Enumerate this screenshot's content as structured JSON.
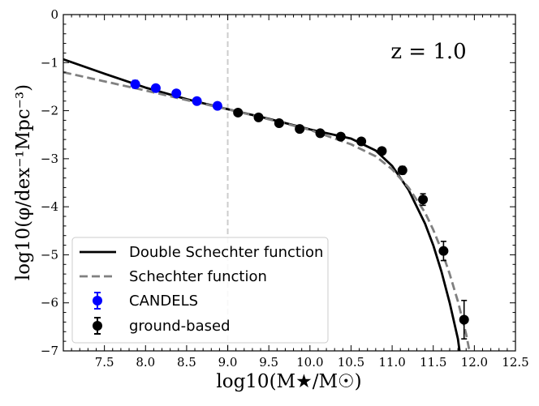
{
  "chart_data": {
    "type": "scatter",
    "title": "",
    "xlabel": "log10(M★/M☉)",
    "ylabel": "log10(φ/dex⁻¹Mpc⁻³)",
    "xlim": [
      7.0,
      12.5
    ],
    "ylim": [
      -7,
      0
    ],
    "x_ticks": [
      7.5,
      8.0,
      8.5,
      9.0,
      9.5,
      10.0,
      10.5,
      11.0,
      11.5,
      12.0,
      12.5
    ],
    "y_ticks": [
      0,
      -1,
      -2,
      -3,
      -4,
      -5,
      -6,
      -7
    ],
    "x_tick_labels": [
      "7.5",
      "8.0",
      "8.5",
      "9.0",
      "9.5",
      "10.0",
      "10.5",
      "11.0",
      "11.5",
      "12.0",
      "12.5"
    ],
    "y_tick_labels": [
      "0",
      "−1",
      "−2",
      "−3",
      "−4",
      "−5",
      "−6",
      "−7"
    ],
    "annotation": "z = 1.0",
    "reference_line_x": 9.0,
    "legend_position": "lower-left",
    "series": [
      {
        "name": "Double Schechter function",
        "kind": "line",
        "style": "solid",
        "color": "#000000",
        "x": [
          7.0,
          7.5,
          8.0,
          8.5,
          9.0,
          9.5,
          10.0,
          10.5,
          10.8,
          11.0,
          11.2,
          11.4,
          11.5,
          11.6,
          11.7,
          11.8,
          11.82
        ],
        "y": [
          -0.93,
          -1.23,
          -1.52,
          -1.76,
          -1.97,
          -2.17,
          -2.39,
          -2.58,
          -2.83,
          -3.15,
          -3.65,
          -4.35,
          -4.8,
          -5.35,
          -6.0,
          -6.75,
          -7.0
        ]
      },
      {
        "name": "Schechter function",
        "kind": "line",
        "style": "dashed",
        "color": "#808080",
        "x": [
          7.0,
          7.5,
          8.0,
          8.5,
          9.0,
          9.5,
          10.0,
          10.5,
          10.8,
          11.0,
          11.2,
          11.4,
          11.5,
          11.6,
          11.7,
          11.8,
          11.9,
          11.94
        ],
        "y": [
          -1.2,
          -1.39,
          -1.58,
          -1.78,
          -1.97,
          -2.18,
          -2.4,
          -2.7,
          -2.95,
          -3.22,
          -3.6,
          -4.12,
          -4.48,
          -4.9,
          -5.4,
          -5.97,
          -6.65,
          -7.0
        ]
      },
      {
        "name": "CANDELS",
        "kind": "points",
        "color": "#0000ff",
        "x": [
          7.875,
          8.125,
          8.375,
          8.625,
          8.875
        ],
        "y": [
          -1.45,
          -1.53,
          -1.64,
          -1.8,
          -1.9
        ],
        "err": [
          0.08,
          0.05,
          0.05,
          0.05,
          0.05
        ]
      },
      {
        "name": "ground-based",
        "kind": "points",
        "color": "#000000",
        "x": [
          9.125,
          9.375,
          9.625,
          9.875,
          10.125,
          10.375,
          10.625,
          10.875,
          11.125,
          11.375,
          11.625,
          11.875
        ],
        "y": [
          -2.04,
          -2.14,
          -2.26,
          -2.38,
          -2.47,
          -2.54,
          -2.64,
          -2.84,
          -3.24,
          -3.85,
          -4.92,
          -6.35
        ],
        "err": [
          0.04,
          0.04,
          0.04,
          0.04,
          0.04,
          0.05,
          0.05,
          0.06,
          0.08,
          0.12,
          0.2,
          0.4
        ]
      }
    ]
  }
}
